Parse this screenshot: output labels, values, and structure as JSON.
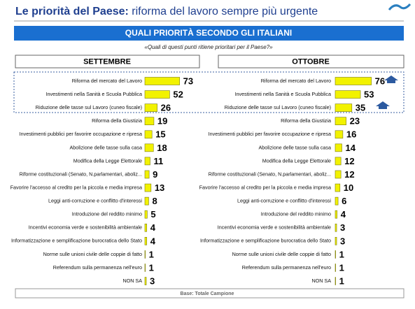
{
  "header": {
    "title_bold": "Le priorità del Paese:",
    "title_rest": " riforma del lavoro sempre più urgente",
    "banner": "QUALI  PRIORITÀ SECONDO GLI ITALIANI",
    "question": "«Quali di questi punti ritiene prioritari per il Paese?»"
  },
  "footer": "Base: Totale Campione",
  "chart_data": [
    {
      "type": "bar",
      "orientation": "horizontal",
      "title": "SETTEMBRE",
      "color": "#f2f200",
      "categories": [
        "Riforma del mercato del Lavoro",
        "Investimenti nella Sanità e Scuola Pubblica",
        "Riduzione delle tasse sul Lavoro (cuneo fiscale)",
        "Riforma della Giustizia",
        "Investimenti pubblici per favorire occupazione e ripresa",
        "Abolizione delle tasse sulla casa",
        "Modifica della Legge Elettorale",
        "Riforme costituzionali (Senato, N.parlamentari, aboliz...",
        "Favorire l'accesso al credito per la piccola e media impresa",
        "Leggi anti-corruzione e conflitto d'interessi",
        "Introduzione del reddito minimo",
        "Incentivi economia verde e sostenibilità ambientale",
        "Informatizzazione e semplificazione burocratica dello Stato",
        "Norme sulle unioni civile delle coppie di fatto",
        "Referendum sulla permanenza nell'euro",
        "NON SA"
      ],
      "values": [
        73,
        52,
        26,
        19,
        15,
        18,
        11,
        9,
        13,
        8,
        5,
        4,
        4,
        1,
        1,
        3
      ],
      "xlim": [
        0,
        100
      ]
    },
    {
      "type": "bar",
      "orientation": "horizontal",
      "title": "OTTOBRE",
      "color": "#f2f200",
      "categories": [
        "Riforma del mercato del Lavoro",
        "Investimenti nella Sanità e Scuola Pubblica",
        "Riduzione delle tasse sul Lavoro (cuneo fiscale)",
        "Riforma della Giustizia",
        "Investimenti pubblici per favorire occupazione e ripresa",
        "Abolizione delle tasse sulla casa",
        "Modifica della Legge Elettorale",
        "Riforme costituzionali (Senato, N.parlamentari, aboliz...",
        "Favorire l'accesso al credito per la piccola e media impresa",
        "Leggi anti-corruzione e conflitto d'interessi",
        "Introduzione del reddito minimo",
        "Incentivi economia verde e sostenibilità ambientale",
        "Informatizzazione e semplificazione burocratica dello Stato",
        "Norme sulle unioni civile delle coppie di fatto",
        "Referendum sulla permanenza nell'euro",
        "NON SA"
      ],
      "values": [
        76,
        53,
        35,
        23,
        16,
        14,
        12,
        12,
        10,
        6,
        4,
        3,
        3,
        1,
        1,
        1
      ],
      "xlim": [
        0,
        100
      ]
    }
  ]
}
